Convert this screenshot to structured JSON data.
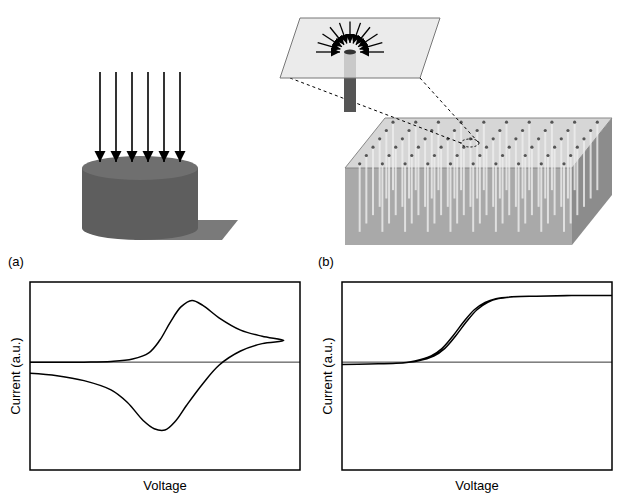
{
  "panel_labels": [
    "(a)",
    "(b)"
  ],
  "chart_data": [
    {
      "type": "line",
      "x_label": "Voltage",
      "y_label": "Current (a.u.)",
      "color": "#000000",
      "xlim": [
        0,
        1
      ],
      "ylim": [
        -1.75,
        1.3
      ],
      "yticks": [
        0
      ],
      "grid": true,
      "tick_labels": false,
      "x": [
        0,
        0.2,
        0.3,
        0.38,
        0.44,
        0.48,
        0.52,
        0.56,
        0.6,
        0.64,
        0.7,
        0.78,
        0.86,
        0.94,
        0.86,
        0.78,
        0.7,
        0.64,
        0.58,
        0.54,
        0.5,
        0.46,
        0.42,
        0.36,
        0.3,
        0.2,
        0.1,
        0
      ],
      "values": [
        0,
        0,
        0.01,
        0.05,
        0.15,
        0.35,
        0.65,
        0.9,
        1.0,
        0.92,
        0.72,
        0.52,
        0.42,
        0.35,
        0.3,
        0.18,
        -0.05,
        -0.35,
        -0.7,
        -0.95,
        -1.1,
        -1.08,
        -0.95,
        -0.65,
        -0.45,
        -0.3,
        -0.22,
        -0.18
      ]
    },
    {
      "type": "line",
      "x_label": "Voltage",
      "y_label": "Current (a.u.)",
      "color": "#000000",
      "xlim": [
        0,
        1
      ],
      "ylim": [
        -1.75,
        1.3
      ],
      "yticks": [
        0
      ],
      "grid": true,
      "tick_labels": false,
      "x": [
        0,
        0.1,
        0.2,
        0.28,
        0.34,
        0.38,
        0.42,
        0.46,
        0.5,
        0.54,
        0.58,
        0.64,
        0.72,
        0.85,
        1.0,
        0.85,
        0.72,
        0.63,
        0.57,
        0.53,
        0.49,
        0.45,
        0.41,
        0.37,
        0.33,
        0.27,
        0.2,
        0.1,
        0
      ],
      "values": [
        -0.04,
        -0.03,
        -0.02,
        0.02,
        0.1,
        0.22,
        0.42,
        0.65,
        0.85,
        0.97,
        1.03,
        1.06,
        1.07,
        1.08,
        1.08,
        1.08,
        1.07,
        1.06,
        1.03,
        0.97,
        0.85,
        0.65,
        0.42,
        0.22,
        0.1,
        0.02,
        -0.02,
        -0.03,
        -0.04
      ]
    }
  ]
}
